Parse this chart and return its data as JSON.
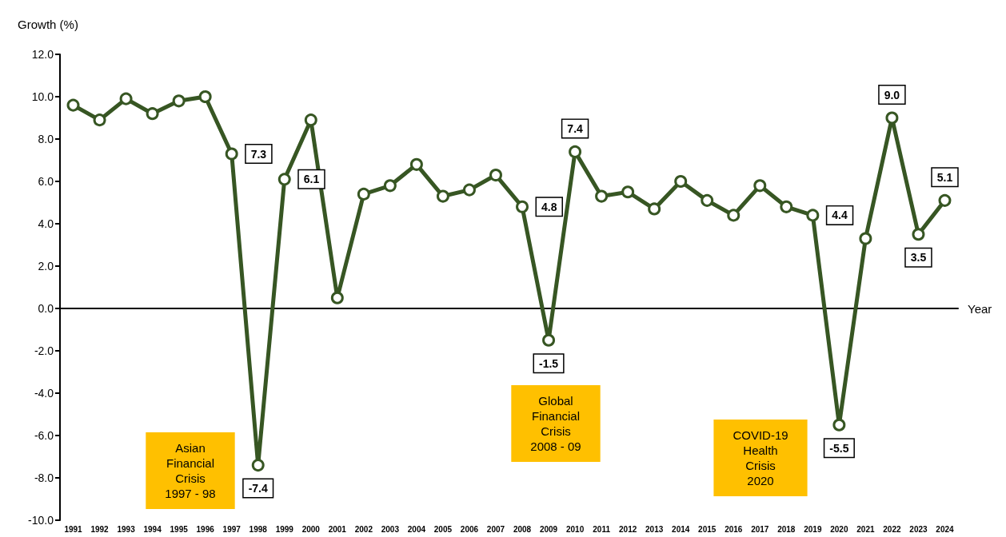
{
  "chart_data": {
    "type": "line",
    "ylabel": "Growth (%)",
    "xlabel": "Year",
    "categories": [
      "1991",
      "1992",
      "1993",
      "1994",
      "1995",
      "1996",
      "1997",
      "1998",
      "1999",
      "2000",
      "2001",
      "2002",
      "2003",
      "2004",
      "2005",
      "2006",
      "2007",
      "2008",
      "2009",
      "2010",
      "2011",
      "2012",
      "2013",
      "2014",
      "2015",
      "2016",
      "2017",
      "2018",
      "2019",
      "2020",
      "2021",
      "2022",
      "2023",
      "2024"
    ],
    "series": [
      {
        "color": "#375623",
        "values": [
          9.6,
          8.9,
          9.9,
          9.2,
          9.8,
          10.0,
          7.3,
          -7.4,
          6.1,
          8.9,
          0.5,
          5.4,
          5.8,
          6.8,
          5.3,
          5.6,
          6.3,
          4.8,
          -1.5,
          7.4,
          5.3,
          5.5,
          4.7,
          6.0,
          5.1,
          4.4,
          5.8,
          4.8,
          4.4,
          -5.5,
          3.3,
          9.0,
          3.5,
          5.1
        ],
        "value_labels": [
          null,
          null,
          null,
          null,
          null,
          null,
          "7.3",
          "-7.4",
          "6.1",
          null,
          null,
          null,
          null,
          null,
          null,
          null,
          null,
          "4.8",
          "-1.5",
          "7.4",
          null,
          null,
          null,
          null,
          null,
          null,
          null,
          null,
          "4.4",
          "-5.5",
          null,
          "9.0",
          "3.5",
          "5.1"
        ]
      }
    ],
    "ylim": [
      -10,
      12
    ],
    "yticks": [
      {
        "value": -10,
        "label": "-10.0"
      },
      {
        "value": -8,
        "label": "-8.0"
      },
      {
        "value": -6,
        "label": "-6.0"
      },
      {
        "value": -4,
        "label": "-4.0"
      },
      {
        "value": -2,
        "label": "-2.0"
      },
      {
        "value": 0,
        "label": "0.0"
      },
      {
        "value": 2,
        "label": "2.0"
      },
      {
        "value": 4,
        "label": "4.0"
      },
      {
        "value": 6,
        "label": "6.0"
      },
      {
        "value": 8,
        "label": "8.0"
      },
      {
        "value": 10,
        "label": "10.0"
      },
      {
        "value": 12,
        "label": "12.0"
      }
    ],
    "marker": "circle",
    "line_style": "solid",
    "annotations": [
      "Asian\nFinancial\nCrisis\n1997 - 98",
      "Global\nFinancial\nCrisis\n2008 - 09",
      "COVID-19\nHealth\nCrisis\n2020"
    ]
  }
}
